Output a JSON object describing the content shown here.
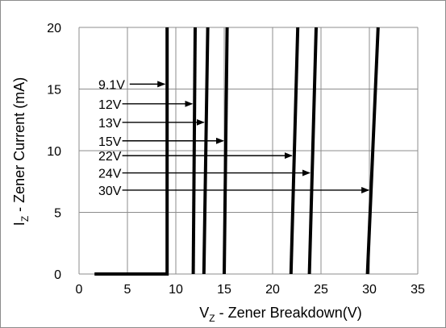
{
  "chart_data": {
    "type": "line",
    "title": "",
    "xlabel": {
      "main": "V",
      "sub": "Z",
      "rest": " - Zener Breakdown(V)"
    },
    "ylabel": {
      "main": "I",
      "sub": "Z",
      "rest": " - Zener Current (mA)"
    },
    "xlim": [
      0,
      35
    ],
    "ylim": [
      0,
      20
    ],
    "x_ticks": [
      "0",
      "5",
      "10",
      "15",
      "20",
      "25",
      "30",
      "35"
    ],
    "y_ticks": [
      "0",
      "5",
      "10",
      "15",
      "20"
    ],
    "grid": true,
    "series": [
      {
        "name": "9.1V",
        "x": [
          1.6,
          9.1,
          9.1
        ],
        "y": [
          0,
          0,
          20
        ],
        "arrow_y": 15.4
      },
      {
        "name": "12V",
        "x": [
          11.8,
          12.0
        ],
        "y": [
          0,
          20
        ],
        "arrow_y": 13.8
      },
      {
        "name": "13V",
        "x": [
          12.9,
          13.3
        ],
        "y": [
          0,
          20
        ],
        "arrow_y": 12.3
      },
      {
        "name": "15V",
        "x": [
          15.0,
          15.3
        ],
        "y": [
          0,
          20
        ],
        "arrow_y": 10.8
      },
      {
        "name": "22V",
        "x": [
          21.9,
          22.6
        ],
        "y": [
          0,
          20
        ],
        "arrow_y": 9.6
      },
      {
        "name": "24V",
        "x": [
          23.8,
          24.5
        ],
        "y": [
          0,
          20
        ],
        "arrow_y": 8.2
      },
      {
        "name": "30V",
        "x": [
          29.8,
          30.9
        ],
        "y": [
          0,
          20
        ],
        "arrow_y": 6.8
      }
    ],
    "line_color": "#000000",
    "grid_color": "#8c8c8c"
  }
}
